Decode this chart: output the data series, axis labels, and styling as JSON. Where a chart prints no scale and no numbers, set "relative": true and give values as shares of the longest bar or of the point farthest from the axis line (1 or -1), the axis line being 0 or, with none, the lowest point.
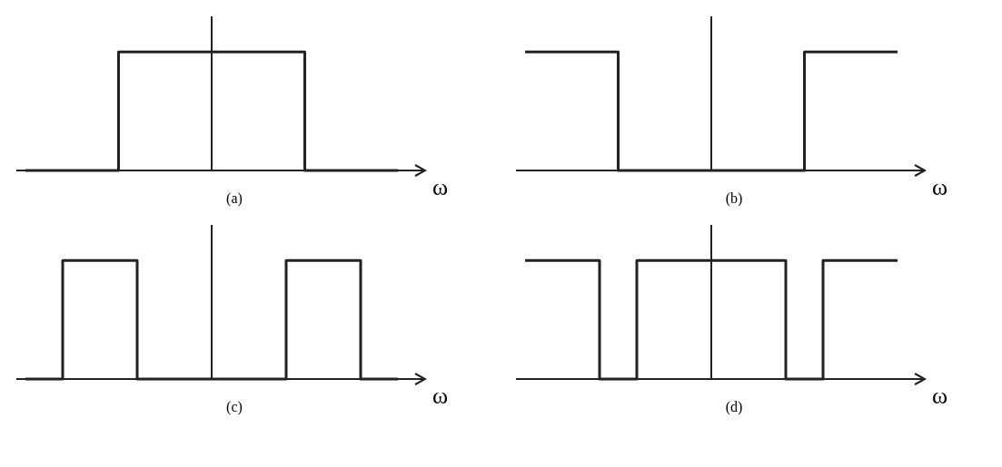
{
  "chart_data": [
    {
      "type": "step",
      "relative": true,
      "xlabel": "ω",
      "annotations": [
        "(a)"
      ],
      "categories": [
        null,
        null,
        null,
        null,
        null,
        null,
        null,
        null,
        null
      ],
      "color": "#222222",
      "values": [
        0,
        0,
        1,
        1,
        1,
        1,
        0,
        0,
        0
      ]
    },
    {
      "type": "step",
      "relative": true,
      "xlabel": "ω",
      "annotations": [
        "(b)"
      ],
      "categories": [
        null,
        null,
        null,
        null,
        null,
        null,
        null,
        null,
        null
      ],
      "color": "#222222",
      "values": [
        1,
        1,
        0,
        0,
        0,
        0,
        1,
        1,
        1
      ]
    },
    {
      "type": "step",
      "relative": true,
      "xlabel": "ω",
      "annotations": [
        "(c)"
      ],
      "categories": [
        null,
        null,
        null,
        null,
        null,
        null,
        null,
        null,
        null,
        null,
        null
      ],
      "color": "#222222",
      "values": [
        0,
        1,
        1,
        0,
        0,
        0,
        0,
        1,
        1,
        0,
        0
      ]
    },
    {
      "type": "step",
      "relative": true,
      "xlabel": "ω",
      "annotations": [
        "(d)"
      ],
      "categories": [
        null,
        null,
        null,
        null,
        null,
        null,
        null,
        null,
        null,
        null,
        null
      ],
      "color": "#222222",
      "values": [
        1,
        1,
        0,
        1,
        1,
        1,
        1,
        0,
        1,
        1,
        1
      ]
    }
  ]
}
